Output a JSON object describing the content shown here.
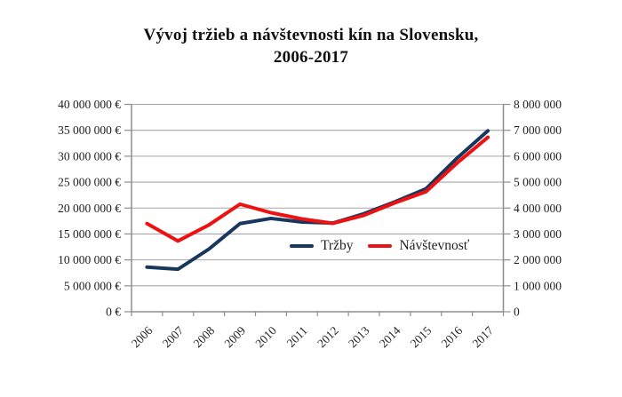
{
  "title": {
    "line1": "Vývoj tržieb a návštevnosti kín na Slovensku,",
    "line2": "2006-2017"
  },
  "chart_data": {
    "type": "line",
    "categories": [
      "2006",
      "2007",
      "2008",
      "2009",
      "2010",
      "2011",
      "2012",
      "2013",
      "2014",
      "2015",
      "2016",
      "2017"
    ],
    "series": [
      {
        "name": "Tržby",
        "axis": "left",
        "color": "#17375E",
        "values": [
          8600000,
          8200000,
          12100000,
          17000000,
          18000000,
          17300000,
          17100000,
          18900000,
          21200000,
          23700000,
          29600000,
          34900000
        ]
      },
      {
        "name": "Návštevnosť",
        "axis": "right",
        "color": "#EE1111",
        "values": [
          3400000,
          2730000,
          3350000,
          4150000,
          3820000,
          3580000,
          3410000,
          3720000,
          4200000,
          4630000,
          5730000,
          6730000
        ]
      }
    ],
    "left_axis": {
      "min": 0,
      "max": 40000000,
      "tick_step": 5000000,
      "tick_labels": [
        "0 €",
        "5 000 000 €",
        "10 000 000 €",
        "15 000 000 €",
        "20 000 000 €",
        "25 000 000 €",
        "30 000 000 €",
        "35 000 000 €",
        "40 000 000 €"
      ]
    },
    "right_axis": {
      "min": 0,
      "max": 8000000,
      "tick_step": 1000000,
      "tick_labels": [
        "0",
        "1 000 000",
        "2 000 000",
        "3 000 000",
        "4 000 000",
        "5 000 000",
        "6 000 000",
        "7 000 000",
        "8 000 000"
      ]
    },
    "grid": "horizontal",
    "legend_position": "inside-center-right",
    "colors": {
      "gridline": "#A6A6A6",
      "axis": "#8E8E8E",
      "text": "#1F1F1F"
    }
  }
}
